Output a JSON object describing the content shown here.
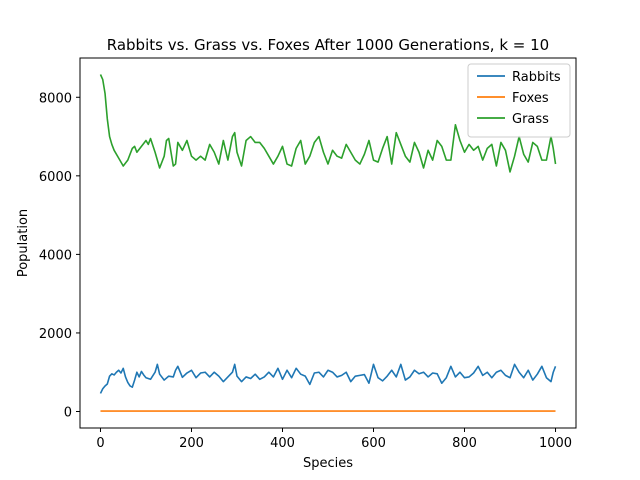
{
  "chart_data": {
    "type": "line",
    "title": "Rabbits vs. Grass vs. Foxes After 1000 Generations, k = 10",
    "xlabel": "Species",
    "ylabel": "Population",
    "xlim": [
      -45,
      1045
    ],
    "ylim": [
      -420,
      9000
    ],
    "xticks": [
      0,
      200,
      400,
      600,
      800,
      1000
    ],
    "yticks": [
      0,
      2000,
      4000,
      6000,
      8000
    ],
    "grid": false,
    "legend_position": "top-right",
    "series": [
      {
        "name": "Rabbits",
        "color": "#1f77b4",
        "x": [
          0,
          5,
          10,
          15,
          20,
          25,
          30,
          35,
          40,
          45,
          50,
          55,
          60,
          65,
          70,
          75,
          80,
          85,
          90,
          95,
          100,
          110,
          120,
          125,
          130,
          140,
          150,
          160,
          165,
          170,
          180,
          190,
          200,
          210,
          220,
          230,
          240,
          250,
          260,
          270,
          280,
          290,
          295,
          300,
          310,
          320,
          330,
          340,
          350,
          360,
          370,
          380,
          390,
          400,
          410,
          420,
          430,
          440,
          450,
          460,
          470,
          480,
          490,
          500,
          510,
          520,
          530,
          540,
          550,
          560,
          570,
          580,
          590,
          600,
          610,
          620,
          630,
          640,
          650,
          660,
          670,
          680,
          690,
          700,
          710,
          720,
          730,
          740,
          750,
          760,
          770,
          780,
          790,
          800,
          810,
          820,
          830,
          840,
          850,
          860,
          870,
          880,
          890,
          900,
          910,
          920,
          930,
          940,
          950,
          960,
          970,
          980,
          990,
          995,
          1000
        ],
        "values": [
          460,
          580,
          650,
          700,
          900,
          960,
          930,
          1000,
          1050,
          980,
          1100,
          880,
          740,
          650,
          620,
          800,
          1000,
          880,
          1020,
          930,
          860,
          820,
          1000,
          1200,
          950,
          800,
          900,
          880,
          1050,
          1150,
          870,
          980,
          1050,
          860,
          980,
          1000,
          880,
          1000,
          900,
          760,
          880,
          1000,
          1200,
          900,
          760,
          880,
          840,
          950,
          820,
          880,
          1000,
          880,
          1100,
          820,
          1050,
          860,
          1100,
          950,
          900,
          690,
          980,
          1000,
          880,
          1050,
          1000,
          880,
          920,
          1000,
          760,
          900,
          920,
          940,
          720,
          1200,
          860,
          780,
          900,
          1050,
          880,
          1200,
          800,
          880,
          1050,
          960,
          1000,
          880,
          980,
          960,
          720,
          860,
          1150,
          880,
          1000,
          860,
          880,
          980,
          1150,
          920,
          1000,
          860,
          1000,
          1050,
          920,
          860,
          1200,
          1000,
          860,
          1050,
          800,
          950,
          1150,
          860,
          760,
          1000,
          1150
        ]
      },
      {
        "name": "Foxes",
        "color": "#ff7f0e",
        "x": [
          0,
          1000
        ],
        "values": [
          10,
          10
        ]
      },
      {
        "name": "Grass",
        "color": "#2ca02c",
        "x": [
          0,
          5,
          10,
          15,
          20,
          25,
          30,
          40,
          50,
          60,
          70,
          75,
          80,
          90,
          100,
          105,
          110,
          120,
          130,
          140,
          145,
          150,
          160,
          165,
          170,
          180,
          190,
          200,
          210,
          220,
          230,
          240,
          250,
          260,
          270,
          280,
          290,
          295,
          300,
          310,
          320,
          330,
          340,
          350,
          360,
          370,
          380,
          390,
          400,
          410,
          420,
          430,
          440,
          450,
          460,
          470,
          480,
          490,
          500,
          510,
          520,
          530,
          540,
          550,
          560,
          570,
          580,
          590,
          600,
          610,
          620,
          630,
          640,
          650,
          660,
          670,
          680,
          690,
          700,
          710,
          720,
          730,
          740,
          750,
          760,
          770,
          780,
          790,
          800,
          810,
          820,
          830,
          840,
          850,
          860,
          870,
          880,
          890,
          900,
          910,
          920,
          930,
          940,
          950,
          960,
          970,
          980,
          990,
          995,
          1000
        ],
        "values": [
          8580,
          8450,
          8100,
          7450,
          7000,
          6800,
          6650,
          6450,
          6250,
          6400,
          6700,
          6750,
          6600,
          6750,
          6900,
          6800,
          6950,
          6600,
          6200,
          6500,
          6900,
          6950,
          6250,
          6300,
          6850,
          6650,
          6900,
          6500,
          6400,
          6500,
          6400,
          6800,
          6600,
          6300,
          6900,
          6400,
          7000,
          7100,
          6600,
          6250,
          6900,
          7000,
          6850,
          6850,
          6700,
          6500,
          6300,
          6500,
          6750,
          6300,
          6250,
          6700,
          6900,
          6300,
          6500,
          6850,
          7000,
          6600,
          6300,
          6650,
          6500,
          6450,
          6800,
          6600,
          6400,
          6300,
          6550,
          6900,
          6400,
          6350,
          6700,
          7000,
          6300,
          7100,
          6800,
          6500,
          6350,
          6850,
          6600,
          6200,
          6650,
          6400,
          6900,
          6750,
          6400,
          6400,
          7300,
          6900,
          6600,
          6800,
          6650,
          6750,
          6400,
          6700,
          6800,
          6250,
          6850,
          6650,
          6100,
          6500,
          7000,
          6550,
          6350,
          6850,
          6750,
          6400,
          6400,
          7000,
          6700,
          6300
        ]
      }
    ]
  }
}
